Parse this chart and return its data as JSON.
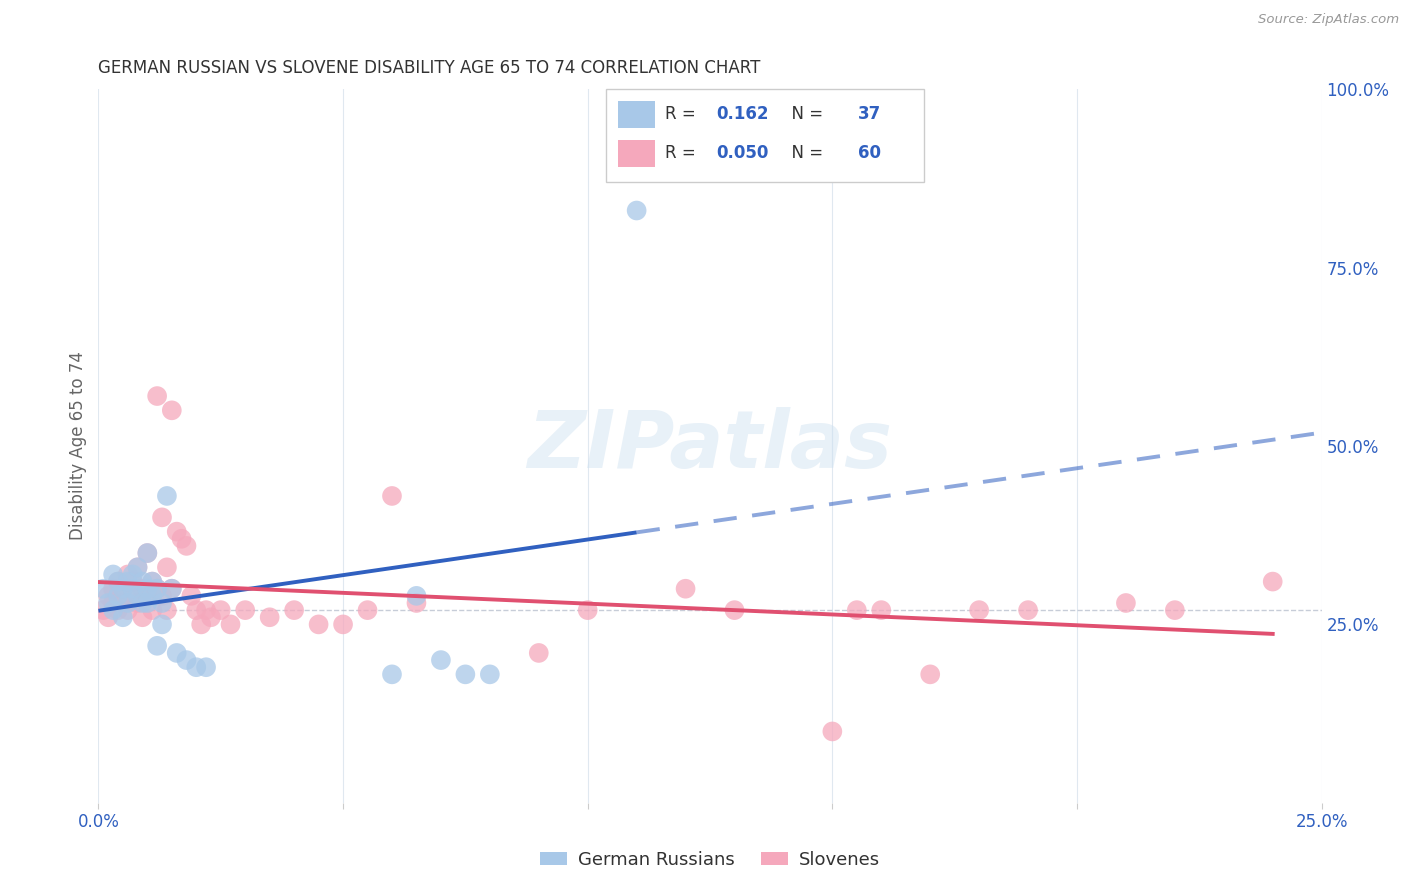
{
  "title": "GERMAN RUSSIAN VS SLOVENE DISABILITY AGE 65 TO 74 CORRELATION CHART",
  "source": "Source: ZipAtlas.com",
  "ylabel": "Disability Age 65 to 74",
  "xlim": [
    0.0,
    0.25
  ],
  "ylim": [
    0.0,
    1.0
  ],
  "legend_gr_R": "0.162",
  "legend_gr_N": "37",
  "legend_sl_R": "0.050",
  "legend_sl_N": "60",
  "gr_color": "#a8c8e8",
  "sl_color": "#f5a8bc",
  "gr_line_color": "#3060c0",
  "sl_line_color": "#e05070",
  "watermark": "ZIPatlas",
  "german_russians_x": [
    0.001,
    0.002,
    0.003,
    0.003,
    0.004,
    0.004,
    0.005,
    0.005,
    0.006,
    0.006,
    0.007,
    0.007,
    0.008,
    0.008,
    0.009,
    0.009,
    0.01,
    0.01,
    0.01,
    0.011,
    0.011,
    0.012,
    0.012,
    0.013,
    0.013,
    0.014,
    0.015,
    0.016,
    0.018,
    0.02,
    0.022,
    0.06,
    0.065,
    0.07,
    0.075,
    0.08,
    0.11
  ],
  "german_russians_y": [
    0.3,
    0.28,
    0.32,
    0.27,
    0.31,
    0.29,
    0.3,
    0.26,
    0.31,
    0.28,
    0.3,
    0.32,
    0.33,
    0.29,
    0.28,
    0.31,
    0.3,
    0.28,
    0.35,
    0.31,
    0.29,
    0.3,
    0.22,
    0.25,
    0.28,
    0.43,
    0.3,
    0.21,
    0.2,
    0.19,
    0.19,
    0.18,
    0.29,
    0.2,
    0.18,
    0.18,
    0.83
  ],
  "slovenes_x": [
    0.001,
    0.002,
    0.002,
    0.003,
    0.003,
    0.004,
    0.004,
    0.005,
    0.005,
    0.006,
    0.006,
    0.007,
    0.007,
    0.008,
    0.008,
    0.009,
    0.009,
    0.01,
    0.01,
    0.011,
    0.011,
    0.012,
    0.012,
    0.013,
    0.013,
    0.014,
    0.014,
    0.015,
    0.015,
    0.016,
    0.017,
    0.018,
    0.019,
    0.02,
    0.021,
    0.022,
    0.023,
    0.025,
    0.027,
    0.03,
    0.035,
    0.04,
    0.045,
    0.05,
    0.055,
    0.06,
    0.065,
    0.09,
    0.1,
    0.12,
    0.13,
    0.15,
    0.155,
    0.16,
    0.17,
    0.18,
    0.19,
    0.21,
    0.22,
    0.24
  ],
  "slovenes_y": [
    0.27,
    0.29,
    0.26,
    0.3,
    0.28,
    0.31,
    0.27,
    0.3,
    0.28,
    0.32,
    0.27,
    0.31,
    0.29,
    0.33,
    0.28,
    0.3,
    0.26,
    0.29,
    0.35,
    0.31,
    0.27,
    0.57,
    0.3,
    0.4,
    0.29,
    0.33,
    0.27,
    0.3,
    0.55,
    0.38,
    0.37,
    0.36,
    0.29,
    0.27,
    0.25,
    0.27,
    0.26,
    0.27,
    0.25,
    0.27,
    0.26,
    0.27,
    0.25,
    0.25,
    0.27,
    0.43,
    0.28,
    0.21,
    0.27,
    0.3,
    0.27,
    0.1,
    0.27,
    0.27,
    0.18,
    0.27,
    0.27,
    0.28,
    0.27,
    0.31
  ],
  "background_color": "#ffffff",
  "grid_color": "#e0e8f0",
  "title_color": "#333333",
  "axis_label_color": "#666666"
}
